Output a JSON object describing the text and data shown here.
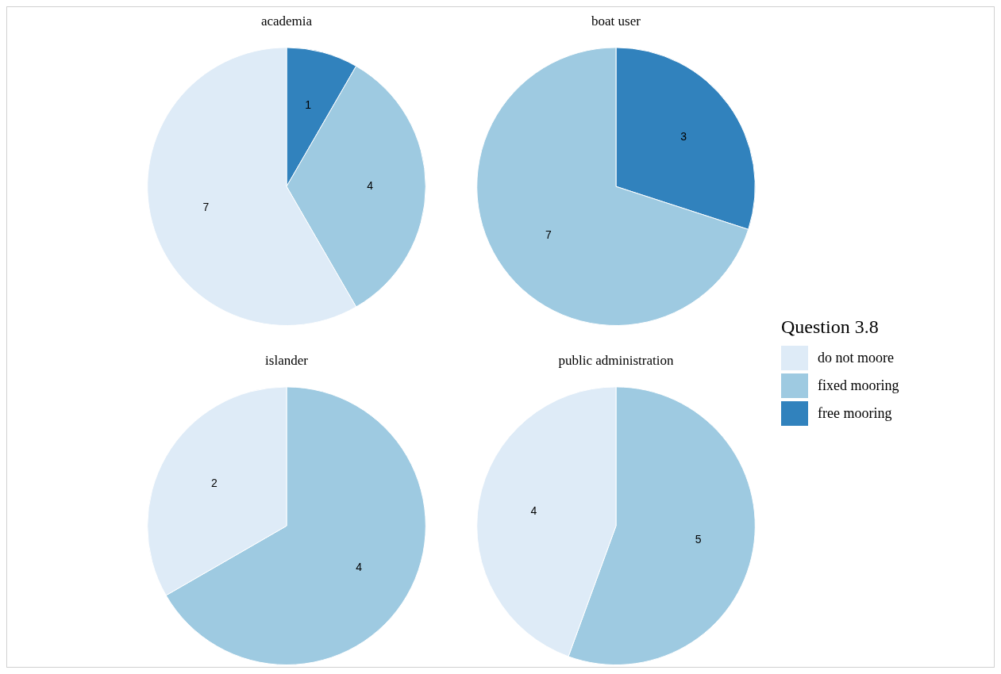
{
  "chart_data": [
    {
      "type": "pie",
      "title": "academia",
      "categories": [
        "free mooring",
        "fixed mooring",
        "do not moore"
      ],
      "values": [
        1,
        4,
        7
      ],
      "colors": [
        "#3182bd",
        "#9ecae1",
        "#deebf7"
      ],
      "data_labels": true,
      "legend": "right",
      "legend_title": "Question 3.8"
    },
    {
      "type": "pie",
      "title": "boat user",
      "categories": [
        null,
        null
      ],
      "values": [
        3,
        7
      ],
      "colors": [
        "#3182bd",
        "#9ecae1"
      ],
      "data_labels": true
    },
    {
      "type": "pie",
      "title": "islander",
      "categories": [
        null,
        null
      ],
      "values": [
        4,
        2
      ],
      "colors": [
        "#9ecae1",
        "#deebf7"
      ],
      "data_labels": true
    },
    {
      "type": "pie",
      "title": "public administration",
      "categories": [
        null,
        null
      ],
      "values": [
        5,
        4
      ],
      "colors": [
        "#9ecae1",
        "#deebf7"
      ],
      "data_labels": true
    }
  ]
}
